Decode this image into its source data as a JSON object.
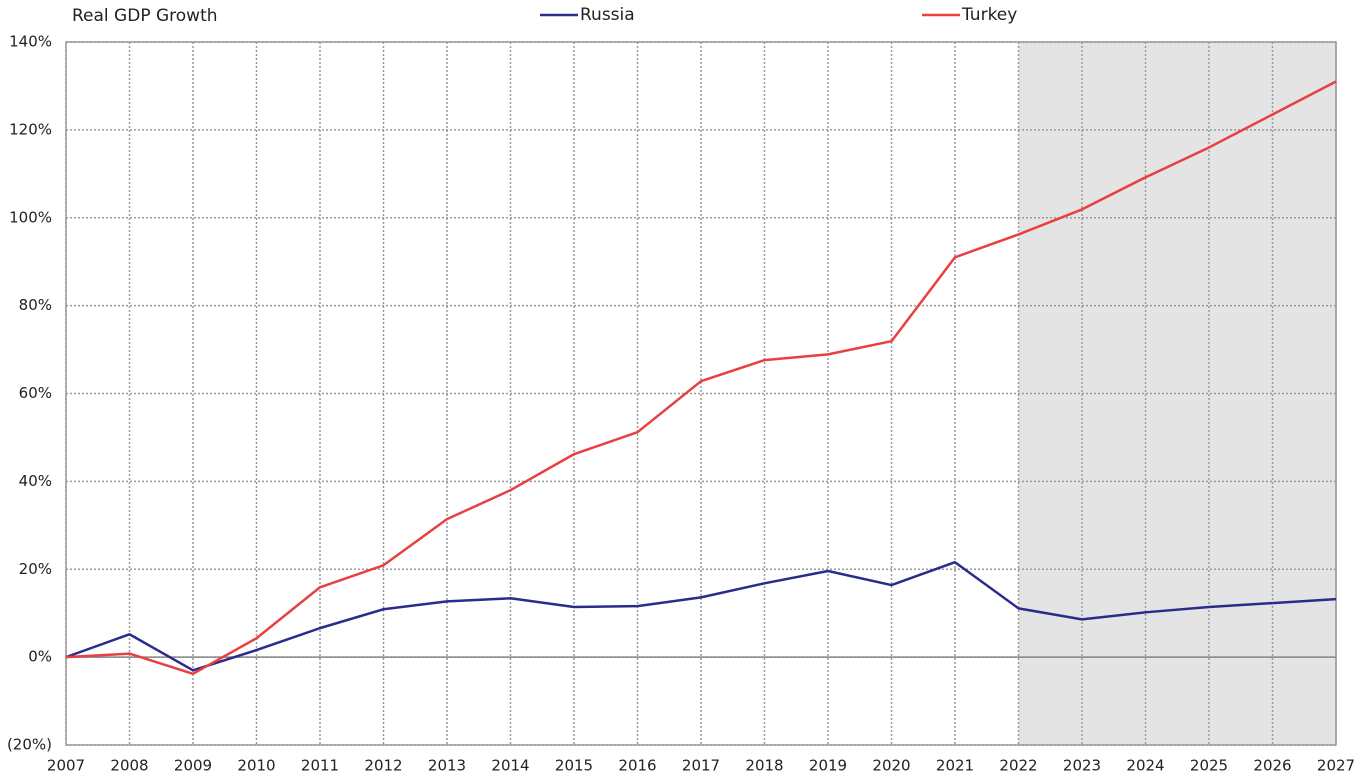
{
  "chart_data": {
    "type": "line",
    "title": "Real GDP Growth",
    "x": [
      2007,
      2008,
      2009,
      2010,
      2011,
      2012,
      2013,
      2014,
      2015,
      2016,
      2017,
      2018,
      2019,
      2020,
      2021,
      2022,
      2023,
      2024,
      2025,
      2026,
      2027
    ],
    "xlim": [
      2007,
      2027
    ],
    "xticks": [
      2007,
      2008,
      2009,
      2010,
      2011,
      2012,
      2013,
      2014,
      2015,
      2016,
      2017,
      2018,
      2019,
      2020,
      2021,
      2022,
      2023,
      2024,
      2025,
      2026,
      2027
    ],
    "ylim": [
      -20,
      140
    ],
    "yticks": [
      {
        "value": -20,
        "label": "(20%)"
      },
      {
        "value": 0,
        "label": "0%"
      },
      {
        "value": 20,
        "label": "20%"
      },
      {
        "value": 40,
        "label": "40%"
      },
      {
        "value": 60,
        "label": "60%"
      },
      {
        "value": 80,
        "label": "80%"
      },
      {
        "value": 100,
        "label": "100%"
      },
      {
        "value": 120,
        "label": "120%"
      },
      {
        "value": 140,
        "label": "140%"
      }
    ],
    "grid": true,
    "shade_x": [
      2022,
      2027
    ],
    "series": [
      {
        "name": "Russia",
        "color": "#2b2b8a",
        "values": [
          0,
          5.2,
          -3,
          1.6,
          6.6,
          10.9,
          12.7,
          13.4,
          11.4,
          11.6,
          13.6,
          16.8,
          19.6,
          16.4,
          21.6,
          11.1,
          8.6,
          10.2,
          11.4,
          12.3,
          13.2
        ]
      },
      {
        "name": "Turkey",
        "color": "#e84040",
        "values": [
          0,
          0.8,
          -3.8,
          4.3,
          15.9,
          20.9,
          31.4,
          38,
          46.2,
          51.2,
          62.8,
          67.6,
          68.9,
          71.9,
          91,
          96.2,
          101.9,
          109.2,
          116,
          123.5,
          131
        ]
      }
    ]
  }
}
